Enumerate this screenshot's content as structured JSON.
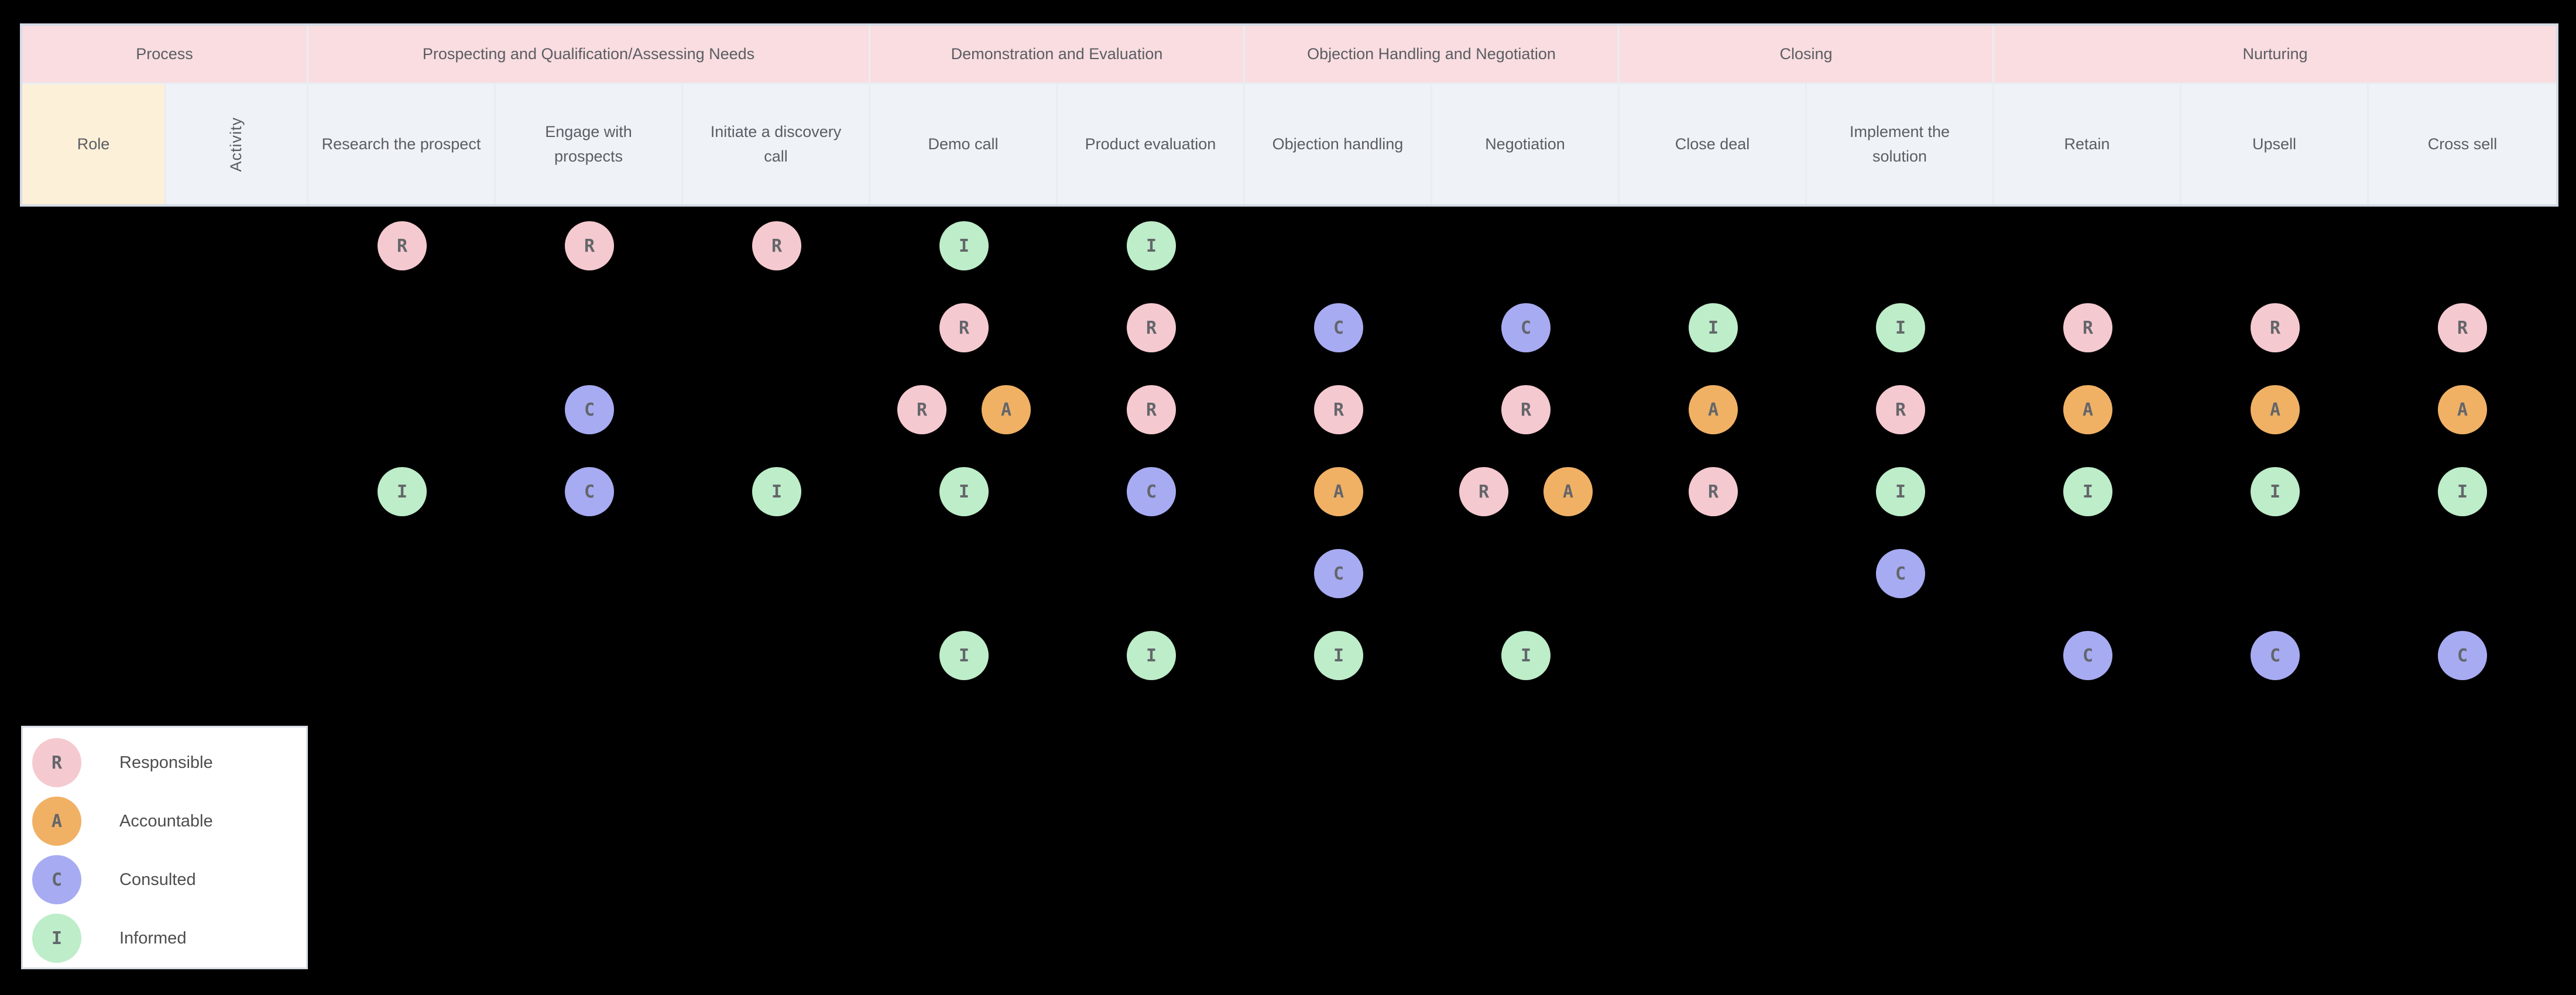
{
  "matrix": {
    "corner_process_label": "Process",
    "role_label": "Role",
    "activity_label": "Activity",
    "processes": [
      {
        "name": "Prospecting and Qualification/Assessing Needs",
        "activities": [
          "Research the prospect",
          "Engage with\nprospects",
          "Initiate a discovery\ncall"
        ]
      },
      {
        "name": "Demonstration and Evaluation",
        "activities": [
          "Demo call",
          "Product evaluation"
        ]
      },
      {
        "name": "Objection Handling and Negotiation",
        "activities": [
          "Objection handling",
          "Negotiation"
        ]
      },
      {
        "name": "Closing",
        "activities": [
          "Close deal",
          "Implement the\nsolution"
        ]
      },
      {
        "name": "Nurturing",
        "activities": [
          "Retain",
          "Upsell",
          "Cross sell"
        ]
      }
    ],
    "rows": [
      {
        "cells": [
          "R",
          "R",
          "R",
          "I",
          "I",
          "",
          "",
          "",
          "",
          "",
          "",
          ""
        ]
      },
      {
        "cells": [
          "",
          "",
          "",
          "R",
          "R",
          "C",
          "C",
          "I",
          "I",
          "R",
          "R",
          "R"
        ]
      },
      {
        "cells": [
          "",
          "C",
          "",
          "RA",
          "R",
          "R",
          "R",
          "A",
          "R",
          "A",
          "A",
          "A"
        ]
      },
      {
        "cells": [
          "I",
          "C",
          "I",
          "I",
          "C",
          "A",
          "RA",
          "R",
          "I",
          "I",
          "I",
          "I"
        ]
      },
      {
        "cells": [
          "",
          "",
          "",
          "",
          "",
          "C",
          "",
          "",
          "C",
          "",
          "",
          ""
        ]
      },
      {
        "cells": [
          "",
          "",
          "",
          "I",
          "I",
          "I",
          "I",
          "",
          "",
          "C",
          "C",
          "C"
        ]
      }
    ]
  },
  "legend": {
    "items": [
      {
        "letter": "R",
        "label": "Responsible",
        "color": "#f5c9d0"
      },
      {
        "letter": "A",
        "label": "Accountable",
        "color": "#f0b165"
      },
      {
        "letter": "C",
        "label": "Consulted",
        "color": "#a7abf2"
      },
      {
        "letter": "I",
        "label": "Informed",
        "color": "#bdedc9"
      }
    ]
  },
  "colors": {
    "background": "#000000",
    "header_process_fill": "#f9dde0",
    "header_activity_fill": "#eff2f7",
    "role_cell_fill": "#fdf0d8",
    "responsible": "#f5c9d0",
    "accountable": "#f0b165",
    "consulted": "#a7abf2",
    "informed": "#bdedc9"
  }
}
